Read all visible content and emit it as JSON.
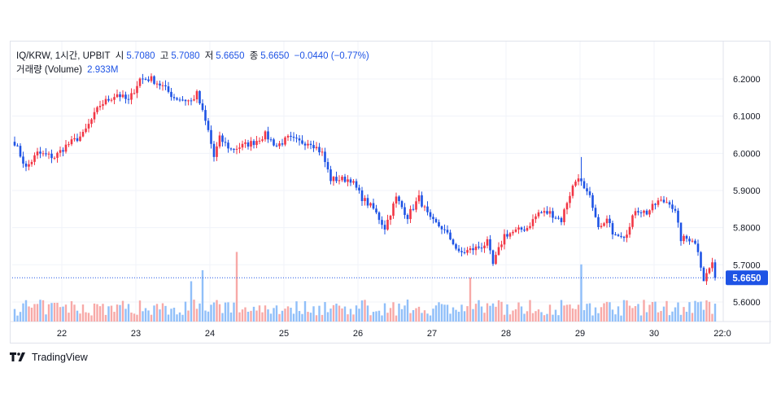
{
  "legend": {
    "symbol": "IQ/KRW, 1시간, UPBIT",
    "open_label": "시",
    "open_value": "5.7080",
    "high_label": "고",
    "high_value": "5.7080",
    "low_label": "저",
    "low_value": "5.6650",
    "close_label": "종",
    "close_value": "5.6650",
    "change": "−0.0440 (−0.77%)",
    "volume_label": "거래량 (Volume)",
    "volume_value": "2.933M"
  },
  "price_tag": "5.6650",
  "brand": "TradingView",
  "colors": {
    "up": "#f23645",
    "down": "#1e53e5",
    "up_vol": "#f7a9a7",
    "down_vol": "#90bff9",
    "grid": "#f0f3fa"
  },
  "chart_data": {
    "type": "candlestick",
    "timeframe": "1시간",
    "x_tick_labels": [
      "22",
      "23",
      "24",
      "25",
      "26",
      "27",
      "28",
      "29",
      "30",
      "22:0"
    ],
    "y_tick_labels": [
      "6.2000",
      "6.1000",
      "6.0000",
      "5.9000",
      "5.8000",
      "5.7000",
      "5.6000"
    ],
    "ylim": [
      5.575,
      6.255
    ],
    "last_price": 5.665,
    "grid": true,
    "path": [
      [
        0,
        6.03
      ],
      [
        4,
        5.96
      ],
      [
        8,
        6.0
      ],
      [
        14,
        5.99
      ],
      [
        18,
        6.02
      ],
      [
        24,
        6.05
      ],
      [
        30,
        6.13
      ],
      [
        36,
        6.16
      ],
      [
        40,
        6.14
      ],
      [
        44,
        6.2
      ],
      [
        48,
        6.2
      ],
      [
        52,
        6.18
      ],
      [
        56,
        6.15
      ],
      [
        62,
        6.14
      ],
      [
        64,
        6.16
      ],
      [
        66,
        6.11
      ],
      [
        68,
        6.06
      ],
      [
        70,
        5.99
      ],
      [
        72,
        6.04
      ],
      [
        76,
        6.01
      ],
      [
        80,
        6.02
      ],
      [
        84,
        6.03
      ],
      [
        88,
        6.05
      ],
      [
        92,
        6.02
      ],
      [
        96,
        6.04
      ],
      [
        100,
        6.03
      ],
      [
        104,
        6.03
      ],
      [
        108,
        6.0
      ],
      [
        111,
        5.93
      ],
      [
        114,
        5.93
      ],
      [
        118,
        5.93
      ],
      [
        122,
        5.88
      ],
      [
        126,
        5.85
      ],
      [
        130,
        5.8
      ],
      [
        134,
        5.88
      ],
      [
        138,
        5.83
      ],
      [
        142,
        5.88
      ],
      [
        146,
        5.82
      ],
      [
        150,
        5.8
      ],
      [
        154,
        5.76
      ],
      [
        156,
        5.73
      ],
      [
        160,
        5.74
      ],
      [
        164,
        5.75
      ],
      [
        166,
        5.76
      ],
      [
        168,
        5.7
      ],
      [
        172,
        5.78
      ],
      [
        176,
        5.79
      ],
      [
        180,
        5.8
      ],
      [
        184,
        5.84
      ],
      [
        188,
        5.84
      ],
      [
        192,
        5.82
      ],
      [
        194,
        5.87
      ],
      [
        196,
        5.91
      ],
      [
        198,
        5.94
      ],
      [
        200,
        5.9
      ],
      [
        202,
        5.88
      ],
      [
        204,
        5.82
      ],
      [
        206,
        5.8
      ],
      [
        208,
        5.82
      ],
      [
        210,
        5.79
      ],
      [
        214,
        5.78
      ],
      [
        216,
        5.8
      ],
      [
        218,
        5.85
      ],
      [
        222,
        5.84
      ],
      [
        226,
        5.87
      ],
      [
        230,
        5.87
      ],
      [
        232,
        5.84
      ],
      [
        234,
        5.77
      ],
      [
        238,
        5.77
      ],
      [
        240,
        5.74
      ],
      [
        242,
        5.66
      ],
      [
        244,
        5.69
      ],
      [
        245,
        5.707
      ],
      [
        246,
        5.665
      ]
    ],
    "high_spikes": [
      [
        199,
        5.99
      ],
      [
        234,
        5.79
      ]
    ],
    "low_spikes": [
      [
        242,
        5.665
      ]
    ],
    "volume_max_label": "2.933M",
    "volume_spikes": [
      [
        78,
        0.95
      ],
      [
        66,
        0.7
      ],
      [
        62,
        0.55
      ],
      [
        199,
        0.78
      ],
      [
        160,
        0.6
      ],
      [
        250,
        0.5
      ]
    ]
  }
}
